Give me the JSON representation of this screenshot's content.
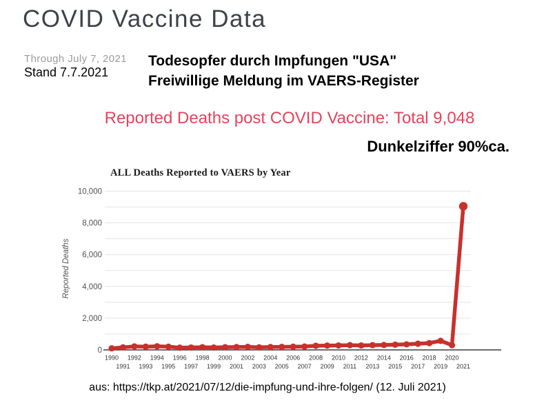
{
  "page": {
    "title": "COVID Vaccine Data",
    "subtitle_en": "Through July 7, 2021",
    "subtitle_de": "Stand 7.7.2021",
    "annotation_de_line1": "Todesopfer durch Impfungen \"USA\"",
    "annotation_de_line2": "Freiwillige Meldung im VAERS-Register",
    "headline_red": "Reported Deaths post COVID Vaccine: Total 9,048",
    "dunkelziffer": "Dunkelziffer 90%ca.",
    "source_line": "aus: https://tkp.at/2021/07/12/die-impfung-und-ihre-folgen/ (12. Juli 2021)"
  },
  "colors": {
    "title_gray": "#3d4249",
    "subtitle_gray": "#9b9b9b",
    "headline_red": "#e8425c",
    "line_red": "#c9302c",
    "grid_gray": "#e3e3e3",
    "axis_dark": "#3a3a3a",
    "tick_gray": "#4f4f4f"
  },
  "chart_data": {
    "type": "line",
    "title": "ALL Deaths Reported to VAERS by Year",
    "xlabel": "",
    "ylabel": "Reported Deaths",
    "ylim": [
      0,
      10000
    ],
    "grid": true,
    "gridline_interval": 1000,
    "legend": false,
    "line_color": "#c9302c",
    "marker": "circle",
    "ytick_values": [
      0,
      2000,
      4000,
      6000,
      8000,
      10000
    ],
    "ytick_labels": [
      "0",
      "2,000",
      "4,000",
      "6,000",
      "8,000",
      "10,000"
    ],
    "x": [
      1990,
      1991,
      1992,
      1993,
      1994,
      1995,
      1996,
      1997,
      1998,
      1999,
      2000,
      2001,
      2002,
      2003,
      2004,
      2005,
      2006,
      2007,
      2008,
      2009,
      2010,
      2011,
      2012,
      2013,
      2014,
      2015,
      2016,
      2017,
      2018,
      2019,
      2020,
      2021
    ],
    "values": [
      100,
      160,
      220,
      200,
      230,
      200,
      140,
      150,
      170,
      150,
      170,
      180,
      190,
      160,
      180,
      190,
      200,
      210,
      260,
      270,
      280,
      300,
      280,
      300,
      310,
      330,
      350,
      390,
      430,
      570,
      300,
      9048
    ]
  }
}
